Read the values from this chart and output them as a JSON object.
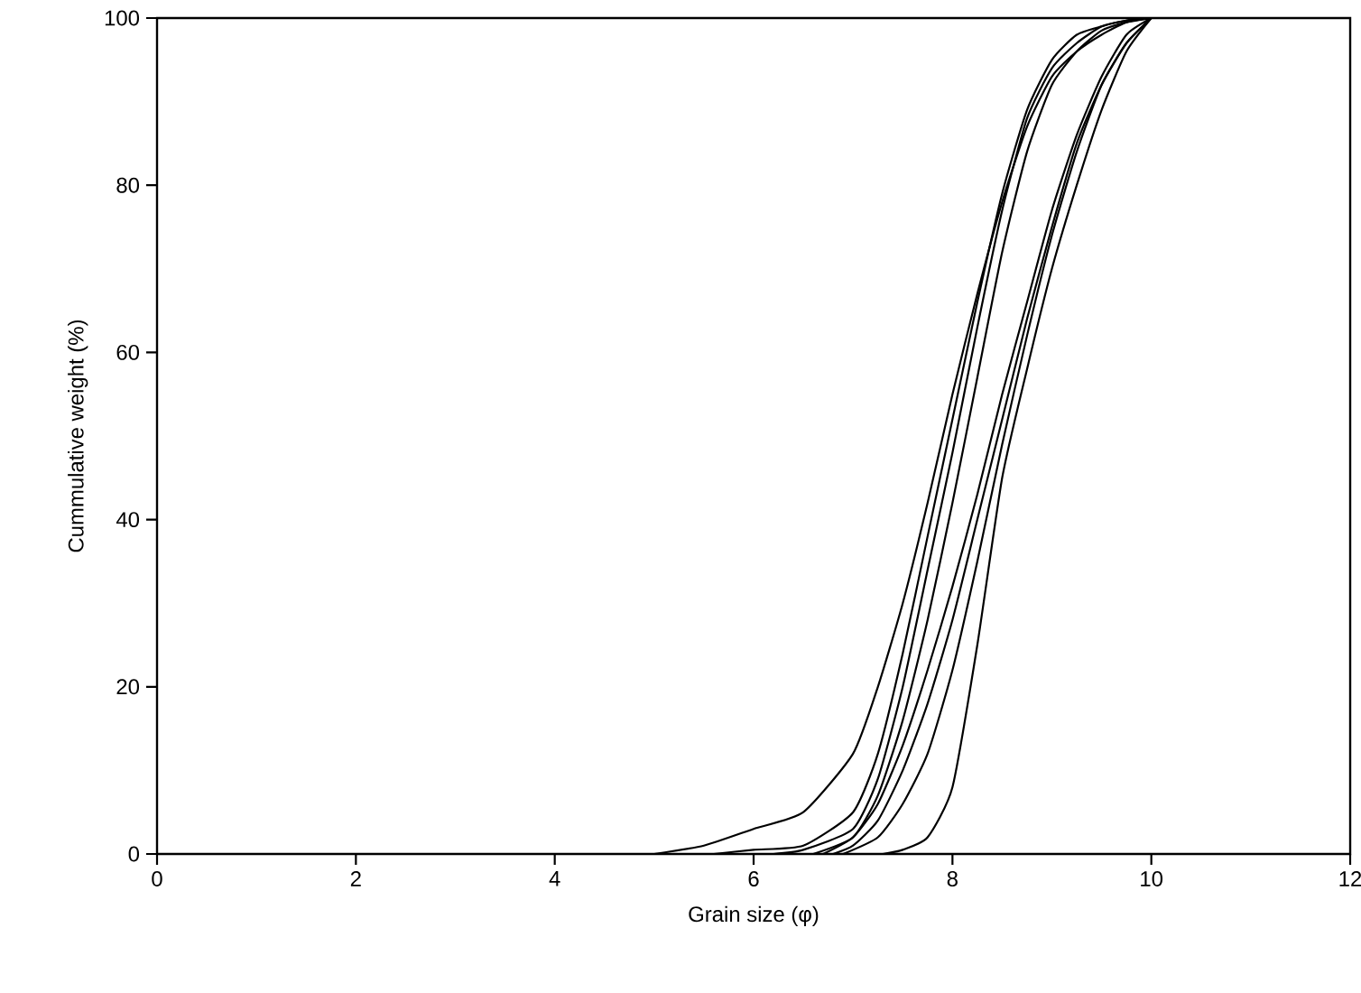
{
  "chart_data": {
    "type": "line",
    "xlabel": "Grain size (φ)",
    "ylabel": "Cummulative weight (%)",
    "series": [
      {
        "color": "#000000",
        "x": [
          5,
          5.5,
          6,
          6.5,
          7,
          7.25,
          7.5,
          7.75,
          8,
          8.25,
          8.5,
          8.75,
          9,
          9.25,
          9.5,
          9.75,
          10
        ],
        "values": [
          0,
          1,
          3,
          5,
          12,
          20,
          30,
          42,
          55,
          67,
          78,
          87,
          93,
          96,
          98,
          99.5,
          100
        ]
      },
      {
        "color": "#000000",
        "x": [
          5.6,
          6,
          6.5,
          7,
          7.25,
          7.5,
          7.75,
          8,
          8.25,
          8.5,
          8.75,
          9,
          9.25,
          9.5,
          9.75,
          10
        ],
        "values": [
          0,
          0.5,
          1,
          5,
          12,
          24,
          38,
          52,
          66,
          79,
          89,
          95,
          98,
          99,
          99.7,
          100
        ]
      },
      {
        "color": "#000000",
        "x": [
          6.2,
          6.5,
          7,
          7.25,
          7.5,
          7.75,
          8,
          8.25,
          8.5,
          8.75,
          9,
          9.25,
          9.5,
          9.75,
          10
        ],
        "values": [
          0,
          0.5,
          3,
          9,
          20,
          34,
          48,
          63,
          77,
          88,
          94,
          97,
          99,
          99.7,
          100
        ]
      },
      {
        "color": "#000000",
        "x": [
          6.6,
          7,
          7.25,
          7.5,
          7.75,
          8,
          8.25,
          8.5,
          8.75,
          9,
          9.25,
          9.5,
          9.75,
          10
        ],
        "values": [
          0,
          2,
          7,
          16,
          28,
          42,
          57,
          72,
          84,
          92,
          96,
          98.5,
          99.5,
          100
        ]
      },
      {
        "color": "#000000",
        "x": [
          6.7,
          7,
          7.25,
          7.5,
          7.75,
          8,
          8.25,
          8.5,
          8.75,
          9,
          9.25,
          9.5,
          9.75,
          10
        ],
        "values": [
          0,
          2,
          6,
          13,
          22,
          32,
          43,
          55,
          66,
          77,
          86,
          93,
          98,
          100
        ]
      },
      {
        "color": "#000000",
        "x": [
          6.8,
          7,
          7.25,
          7.5,
          7.75,
          8,
          8.25,
          8.5,
          8.75,
          9,
          9.25,
          9.5,
          9.75,
          10
        ],
        "values": [
          0,
          1,
          4,
          10,
          18,
          28,
          40,
          52,
          64,
          75,
          85,
          92,
          97,
          100
        ]
      },
      {
        "color": "#000000",
        "x": [
          6.9,
          7.25,
          7.5,
          7.75,
          8,
          8.25,
          8.5,
          8.75,
          9,
          9.25,
          9.5,
          9.75,
          10
        ],
        "values": [
          0,
          2,
          6,
          12,
          22,
          35,
          49,
          62,
          74,
          84,
          92,
          97,
          100
        ]
      },
      {
        "color": "#000000",
        "x": [
          7.3,
          7.5,
          7.75,
          8,
          8.25,
          8.5,
          8.75,
          9,
          9.25,
          9.5,
          9.75,
          10
        ],
        "values": [
          0,
          0.5,
          2,
          8,
          25,
          45,
          58,
          70,
          80,
          89,
          96,
          100
        ]
      }
    ],
    "xlim": [
      0,
      12
    ],
    "xticks": [
      0,
      2,
      4,
      6,
      8,
      10,
      12
    ],
    "ylim": [
      0,
      100
    ],
    "yticks": [
      0,
      20,
      40,
      60,
      80,
      100
    ],
    "grid": false,
    "marker": "none",
    "line_style": "solid"
  }
}
